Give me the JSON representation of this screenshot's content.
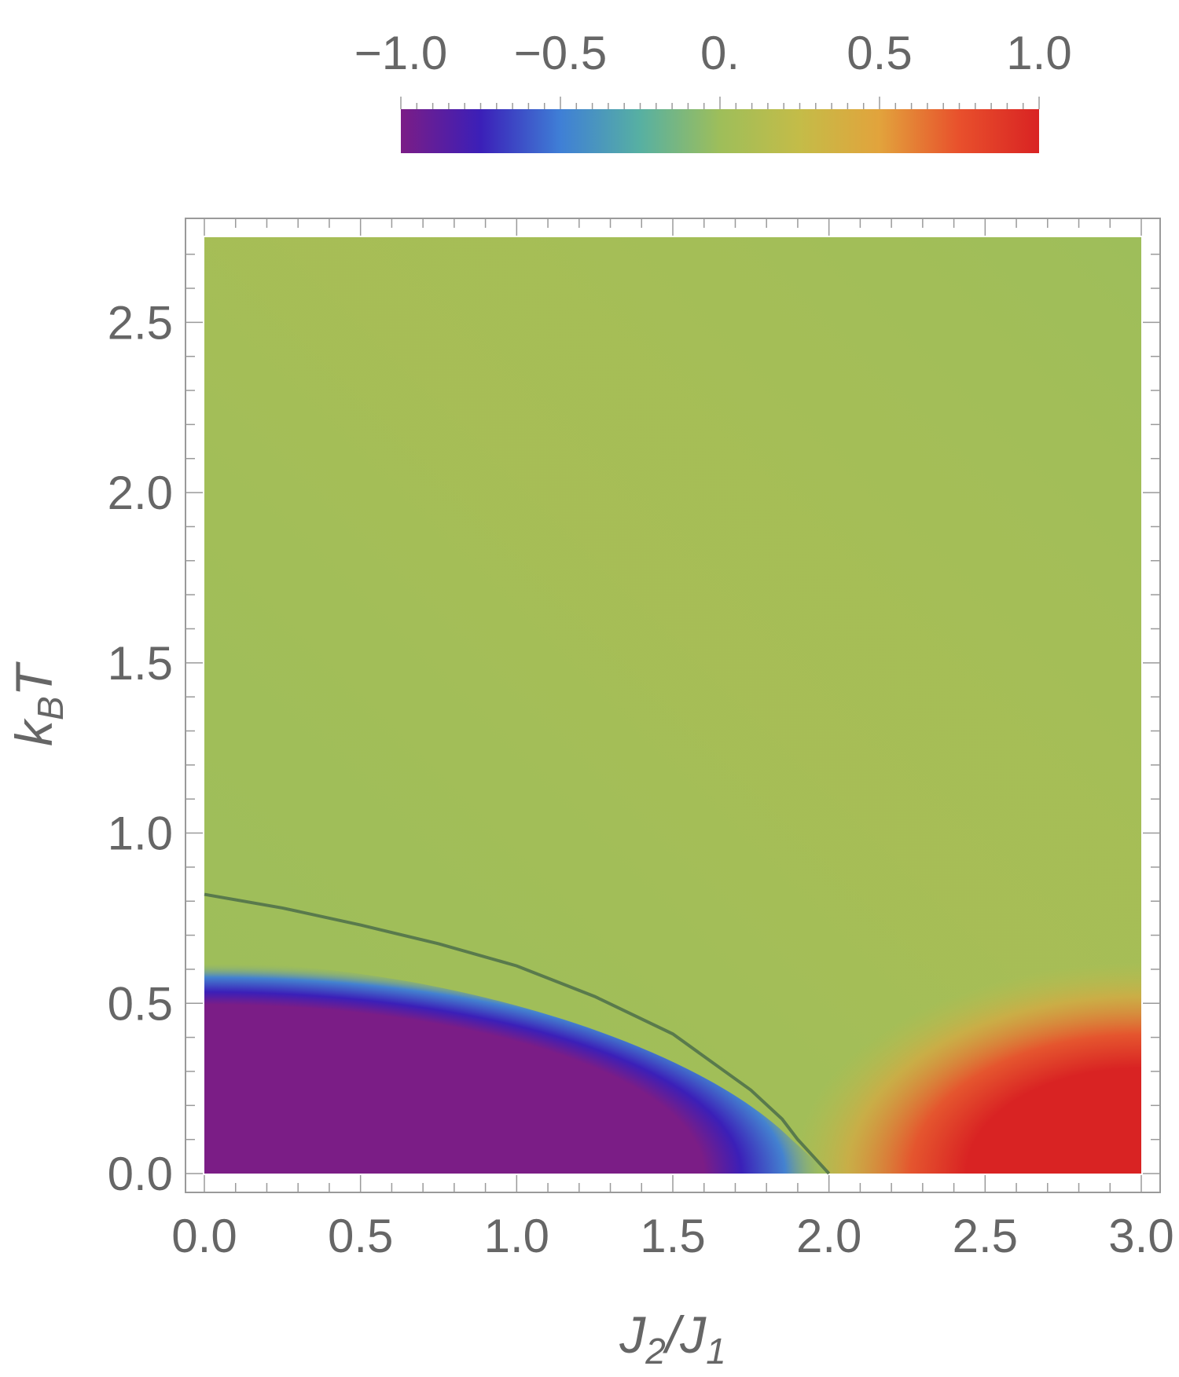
{
  "chart_data": {
    "type": "heatmap",
    "xlabel": {
      "main": "J",
      "sub1": "2",
      "sep": "/",
      "main2": "J",
      "sub2": "1"
    },
    "ylabel": {
      "main": "k",
      "sub": "B",
      "tail": "T"
    },
    "xlim": [
      0.0,
      3.0
    ],
    "ylim": [
      0.0,
      2.75
    ],
    "x_ticks": [
      0.0,
      0.5,
      1.0,
      1.5,
      2.0,
      2.5,
      3.0
    ],
    "x_tick_labels": [
      "0.0",
      "0.5",
      "1.0",
      "1.5",
      "2.0",
      "2.5",
      "3.0"
    ],
    "y_ticks": [
      0.0,
      0.5,
      1.0,
      1.5,
      2.0,
      2.5
    ],
    "y_tick_labels": [
      "0.0",
      "0.5",
      "1.0",
      "1.5",
      "2.0",
      "2.5"
    ],
    "colorbar": {
      "range": [
        -1.0,
        1.0
      ],
      "ticks": [
        -1.0,
        -0.5,
        0.0,
        0.5,
        1.0
      ],
      "tick_labels": [
        "−1.0",
        "−0.5",
        "0.",
        "0.5",
        "1.0"
      ],
      "placement": "top",
      "colors": [
        "#7b1d86",
        "#3b1fb8",
        "#3f7fd6",
        "#57b0a2",
        "#9ebe5a",
        "#c4bc48",
        "#e2a33c",
        "#e8502c",
        "#d92323"
      ]
    },
    "critical_line": {
      "color": "#4c6e4a",
      "x": [
        0.0,
        0.25,
        0.5,
        0.75,
        1.0,
        1.25,
        1.5,
        1.75,
        1.85,
        1.9,
        1.95,
        2.0
      ],
      "y": [
        0.82,
        0.78,
        0.73,
        0.675,
        0.61,
        0.52,
        0.41,
        0.245,
        0.16,
        0.1,
        0.05,
        0.0
      ]
    },
    "grid": false
  }
}
